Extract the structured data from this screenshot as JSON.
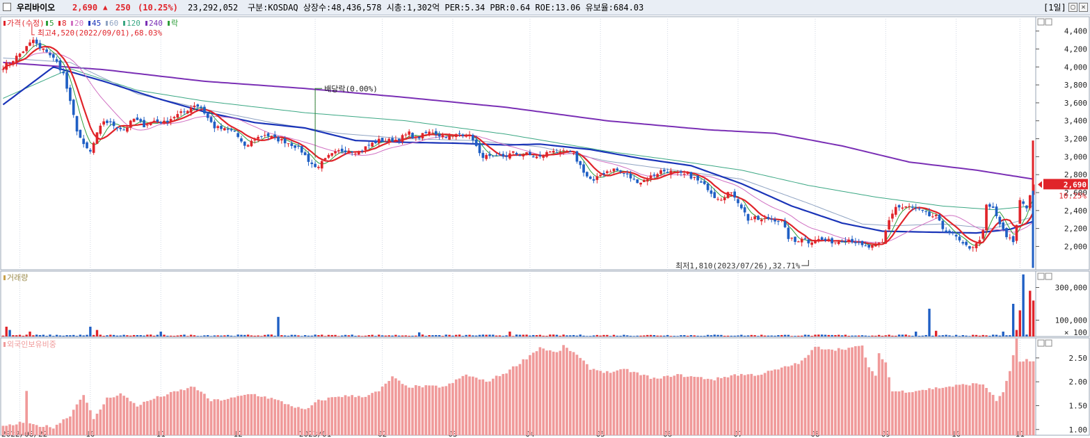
{
  "titlebar": {
    "name": "우리바이오",
    "price": "2,690",
    "arrow": "▲",
    "change": "250",
    "pct": "(10.25%)",
    "volume": "23,292,052",
    "info": "구분:KOSDAQ 상장수:48,436,578 시총:1,302억 PER:5.34 PBR:0.64 ROE:13.06 유보율:684.03",
    "period": "[1일]",
    "btn_restore": "▢",
    "btn_close": "✕"
  },
  "colors": {
    "up": "#e0242a",
    "down": "#1f5fc4",
    "ma5": "#2e9d3a",
    "ma8": "#e0242a",
    "ma20": "#d06fc2",
    "ma45": "#1a34b8",
    "ma60": "#8fa3c2",
    "ma120": "#3aa783",
    "ma240": "#7a2fb5",
    "foreign": "#f09a9a",
    "grid": "#cfd6e2"
  },
  "chart_data": [
    {
      "type": "candlestick",
      "title": "가격(수정)",
      "legend": [
        {
          "label": "가격(수정)",
          "color": "#e0242a"
        },
        {
          "label": "5",
          "color": "#2e9d3a"
        },
        {
          "label": "8",
          "color": "#e0242a"
        },
        {
          "label": "20",
          "color": "#d06fc2"
        },
        {
          "label": "45",
          "color": "#1a34b8"
        },
        {
          "label": "60",
          "color": "#8fa3c2"
        },
        {
          "label": "120",
          "color": "#3aa783"
        },
        {
          "label": "240",
          "color": "#7a2fb5"
        },
        {
          "label": "락",
          "color": "#2e9d3a"
        }
      ],
      "ylim": [
        1740,
        4560
      ],
      "yticks": [
        "4,400",
        "4,200",
        "4,000",
        "3,800",
        "3,600",
        "3,400",
        "3,200",
        "3,000",
        "2,800",
        "2,600",
        "2,400",
        "2,200",
        "2,000"
      ],
      "ytick_values": [
        4400,
        4200,
        4000,
        3800,
        3600,
        3400,
        3200,
        3000,
        2800,
        2600,
        2400,
        2200,
        2000
      ],
      "x_categories": [
        "2022/08/22",
        "10",
        "11",
        "12",
        "2023/01",
        "02",
        "03",
        "04",
        "05",
        "06",
        "07",
        "08",
        "09",
        "10",
        "11"
      ],
      "x_label_days": [
        5,
        26,
        47,
        70,
        93,
        113,
        134,
        157,
        178,
        198,
        219,
        242,
        263,
        284,
        303
      ],
      "close_anchors": [
        [
          0,
          4000
        ],
        [
          3,
          4080
        ],
        [
          6,
          4180
        ],
        [
          9,
          4300
        ],
        [
          11,
          4200
        ],
        [
          13,
          4180
        ],
        [
          16,
          4050
        ],
        [
          18,
          3920
        ],
        [
          20,
          3600
        ],
        [
          22,
          3300
        ],
        [
          24,
          3120
        ],
        [
          26,
          3050
        ],
        [
          28,
          3250
        ],
        [
          30,
          3400
        ],
        [
          33,
          3350
        ],
        [
          36,
          3300
        ],
        [
          39,
          3420
        ],
        [
          42,
          3350
        ],
        [
          45,
          3400
        ],
        [
          48,
          3380
        ],
        [
          51,
          3450
        ],
        [
          54,
          3500
        ],
        [
          57,
          3580
        ],
        [
          59,
          3550
        ],
        [
          61,
          3430
        ],
        [
          63,
          3330
        ],
        [
          66,
          3300
        ],
        [
          69,
          3280
        ],
        [
          72,
          3100
        ],
        [
          75,
          3200
        ],
        [
          78,
          3250
        ],
        [
          81,
          3200
        ],
        [
          84,
          3170
        ],
        [
          87,
          3120
        ],
        [
          89,
          3060
        ],
        [
          91,
          2960
        ],
        [
          93,
          2880
        ],
        [
          95,
          2930
        ],
        [
          97,
          3000
        ],
        [
          100,
          3060
        ],
        [
          103,
          3080
        ],
        [
          106,
          3050
        ],
        [
          109,
          3130
        ],
        [
          112,
          3180
        ],
        [
          115,
          3180
        ],
        [
          117,
          3190
        ],
        [
          119,
          3220
        ],
        [
          121,
          3260
        ],
        [
          123,
          3200
        ],
        [
          126,
          3260
        ],
        [
          128,
          3280
        ],
        [
          130,
          3240
        ],
        [
          132,
          3230
        ],
        [
          134,
          3220
        ],
        [
          136,
          3260
        ],
        [
          138,
          3250
        ],
        [
          140,
          3200
        ],
        [
          142,
          3020
        ],
        [
          144,
          3000
        ],
        [
          146,
          2980
        ],
        [
          148,
          3000
        ],
        [
          150,
          3010
        ],
        [
          152,
          3040
        ],
        [
          154,
          3020
        ],
        [
          156,
          3030
        ],
        [
          158,
          3000
        ],
        [
          160,
          2990
        ],
        [
          162,
          3040
        ],
        [
          164,
          3080
        ],
        [
          166,
          3030
        ],
        [
          168,
          3060
        ],
        [
          170,
          3020
        ],
        [
          172,
          2900
        ],
        [
          174,
          2780
        ],
        [
          176,
          2720
        ],
        [
          178,
          2800
        ],
        [
          180,
          2840
        ],
        [
          182,
          2860
        ],
        [
          184,
          2830
        ],
        [
          186,
          2790
        ],
        [
          188,
          2740
        ],
        [
          190,
          2720
        ],
        [
          192,
          2760
        ],
        [
          194,
          2800
        ],
        [
          196,
          2840
        ],
        [
          198,
          2840
        ],
        [
          200,
          2820
        ],
        [
          202,
          2800
        ],
        [
          204,
          2800
        ],
        [
          206,
          2760
        ],
        [
          208,
          2700
        ],
        [
          210,
          2650
        ],
        [
          212,
          2560
        ],
        [
          214,
          2540
        ],
        [
          216,
          2600
        ],
        [
          218,
          2560
        ],
        [
          220,
          2440
        ],
        [
          222,
          2300
        ],
        [
          224,
          2310
        ],
        [
          226,
          2290
        ],
        [
          228,
          2310
        ],
        [
          230,
          2300
        ],
        [
          232,
          2280
        ],
        [
          234,
          2100
        ],
        [
          236,
          2050
        ],
        [
          238,
          2100
        ],
        [
          240,
          2050
        ],
        [
          242,
          2080
        ],
        [
          244,
          2070
        ],
        [
          246,
          2060
        ],
        [
          248,
          2050
        ],
        [
          250,
          2070
        ],
        [
          252,
          2080
        ],
        [
          254,
          2050
        ],
        [
          256,
          2000
        ],
        [
          258,
          1990
        ],
        [
          260,
          2010
        ],
        [
          262,
          2040
        ],
        [
          264,
          2300
        ],
        [
          266,
          2440
        ],
        [
          268,
          2430
        ],
        [
          270,
          2440
        ],
        [
          272,
          2410
        ],
        [
          274,
          2380
        ],
        [
          276,
          2340
        ],
        [
          278,
          2330
        ],
        [
          280,
          2200
        ],
        [
          282,
          2160
        ],
        [
          284,
          2100
        ],
        [
          286,
          2010
        ],
        [
          288,
          1990
        ],
        [
          290,
          2020
        ],
        [
          292,
          2160
        ],
        [
          293,
          2450
        ],
        [
          295,
          2420
        ],
        [
          297,
          2250
        ],
        [
          299,
          2100
        ],
        [
          301,
          2060
        ],
        [
          302,
          2230
        ],
        [
          303,
          2520
        ],
        [
          305,
          2440
        ],
        [
          307,
          2690
        ]
      ],
      "ma240_anchors": [
        [
          0,
          4050
        ],
        [
          30,
          3970
        ],
        [
          60,
          3840
        ],
        [
          90,
          3760
        ],
        [
          120,
          3660
        ],
        [
          150,
          3550
        ],
        [
          180,
          3400
        ],
        [
          210,
          3300
        ],
        [
          230,
          3260
        ],
        [
          250,
          3120
        ],
        [
          270,
          2940
        ],
        [
          290,
          2850
        ],
        [
          307,
          2750
        ]
      ],
      "ma120_anchors": [
        [
          0,
          3650
        ],
        [
          20,
          3980
        ],
        [
          40,
          3740
        ],
        [
          60,
          3620
        ],
        [
          90,
          3490
        ],
        [
          120,
          3400
        ],
        [
          150,
          3250
        ],
        [
          180,
          3060
        ],
        [
          200,
          2960
        ],
        [
          220,
          2850
        ],
        [
          240,
          2680
        ],
        [
          260,
          2550
        ],
        [
          280,
          2450
        ],
        [
          295,
          2410
        ],
        [
          307,
          2450
        ]
      ],
      "ma60_anchors": [
        [
          0,
          4100
        ],
        [
          20,
          4050
        ],
        [
          40,
          3700
        ],
        [
          60,
          3530
        ],
        [
          80,
          3380
        ],
        [
          100,
          3260
        ],
        [
          120,
          3200
        ],
        [
          140,
          3180
        ],
        [
          160,
          3110
        ],
        [
          180,
          2950
        ],
        [
          200,
          2850
        ],
        [
          220,
          2750
        ],
        [
          240,
          2480
        ],
        [
          256,
          2250
        ],
        [
          265,
          2230
        ],
        [
          280,
          2250
        ],
        [
          295,
          2200
        ],
        [
          307,
          2330
        ]
      ],
      "ma45_anchors": [
        [
          0,
          3580
        ],
        [
          15,
          4000
        ],
        [
          30,
          3840
        ],
        [
          45,
          3660
        ],
        [
          60,
          3500
        ],
        [
          75,
          3380
        ],
        [
          90,
          3320
        ],
        [
          105,
          3180
        ],
        [
          120,
          3160
        ],
        [
          135,
          3150
        ],
        [
          150,
          3130
        ],
        [
          160,
          3140
        ],
        [
          175,
          3080
        ],
        [
          190,
          2980
        ],
        [
          205,
          2900
        ],
        [
          220,
          2700
        ],
        [
          235,
          2450
        ],
        [
          250,
          2260
        ],
        [
          262,
          2170
        ],
        [
          275,
          2160
        ],
        [
          290,
          2150
        ],
        [
          300,
          2190
        ],
        [
          307,
          2280
        ]
      ],
      "annotations": [
        {
          "text": "최고4,520(2022/09/01),68.03%",
          "day": 9,
          "value": 4520
        },
        {
          "text": "배당락(0.00%)",
          "day": 93,
          "value": 3760
        },
        {
          "text": "최저1,810(2023/07/26),32.71%",
          "day": 240,
          "value": 1810
        }
      ],
      "last_price_label": "2,690",
      "last_pct_label": "10.25%"
    },
    {
      "type": "bar",
      "title": "거래량",
      "ylim": [
        0,
        400000
      ],
      "yticks": [
        "300,000",
        "100,000"
      ],
      "ytick_values": [
        300000,
        100000
      ],
      "unit_label": "× 100",
      "spikes": [
        [
          1,
          60000
        ],
        [
          2,
          40000
        ],
        [
          8,
          30000
        ],
        [
          26,
          60000
        ],
        [
          28,
          40000
        ],
        [
          47,
          30000
        ],
        [
          82,
          120000
        ],
        [
          124,
          25000
        ],
        [
          151,
          30000
        ],
        [
          272,
          30000
        ],
        [
          276,
          170000
        ],
        [
          278,
          35000
        ],
        [
          298,
          30000
        ],
        [
          301,
          200000
        ],
        [
          302,
          40000
        ],
        [
          303,
          160000
        ],
        [
          304,
          380000
        ],
        [
          306,
          280000
        ],
        [
          307,
          220000
        ]
      ]
    },
    {
      "type": "bar",
      "title": "외국인보유비중",
      "ylim": [
        0.88,
        2.92
      ],
      "yticks": [
        "2.50",
        "2.00",
        "1.50",
        "1.00"
      ],
      "ytick_values": [
        2.5,
        2.0,
        1.5,
        1.0
      ],
      "anchors": [
        [
          0,
          1.05
        ],
        [
          6,
          1.15
        ],
        [
          7,
          1.8
        ],
        [
          8,
          1.1
        ],
        [
          15,
          1.05
        ],
        [
          20,
          1.3
        ],
        [
          24,
          1.75
        ],
        [
          27,
          1.2
        ],
        [
          31,
          1.65
        ],
        [
          35,
          1.75
        ],
        [
          40,
          1.5
        ],
        [
          45,
          1.65
        ],
        [
          52,
          1.8
        ],
        [
          57,
          1.9
        ],
        [
          62,
          1.6
        ],
        [
          68,
          1.65
        ],
        [
          74,
          1.75
        ],
        [
          80,
          1.65
        ],
        [
          86,
          1.5
        ],
        [
          90,
          1.4
        ],
        [
          94,
          1.6
        ],
        [
          100,
          1.7
        ],
        [
          108,
          1.7
        ],
        [
          112,
          1.8
        ],
        [
          116,
          2.1
        ],
        [
          120,
          1.9
        ],
        [
          126,
          1.9
        ],
        [
          132,
          1.9
        ],
        [
          138,
          2.15
        ],
        [
          144,
          2.0
        ],
        [
          150,
          2.2
        ],
        [
          156,
          2.5
        ],
        [
          160,
          2.72
        ],
        [
          165,
          2.6
        ],
        [
          167,
          2.74
        ],
        [
          170,
          2.62
        ],
        [
          175,
          2.28
        ],
        [
          180,
          2.2
        ],
        [
          186,
          2.25
        ],
        [
          190,
          2.15
        ],
        [
          195,
          2.05
        ],
        [
          200,
          2.15
        ],
        [
          206,
          2.1
        ],
        [
          212,
          2.05
        ],
        [
          218,
          2.15
        ],
        [
          225,
          2.15
        ],
        [
          232,
          2.28
        ],
        [
          238,
          2.42
        ],
        [
          242,
          2.72
        ],
        [
          248,
          2.68
        ],
        [
          254,
          2.72
        ],
        [
          256,
          2.75
        ],
        [
          258,
          2.3
        ],
        [
          260,
          2.1
        ],
        [
          261,
          2.6
        ],
        [
          263,
          2.4
        ],
        [
          265,
          1.8
        ],
        [
          270,
          1.8
        ],
        [
          276,
          1.85
        ],
        [
          282,
          1.9
        ],
        [
          288,
          1.95
        ],
        [
          292,
          1.95
        ],
        [
          294,
          1.8
        ],
        [
          296,
          1.6
        ],
        [
          298,
          1.8
        ],
        [
          300,
          2.2
        ],
        [
          302,
          2.92
        ],
        [
          303,
          2.4
        ],
        [
          305,
          2.45
        ],
        [
          307,
          2.4
        ]
      ]
    }
  ]
}
